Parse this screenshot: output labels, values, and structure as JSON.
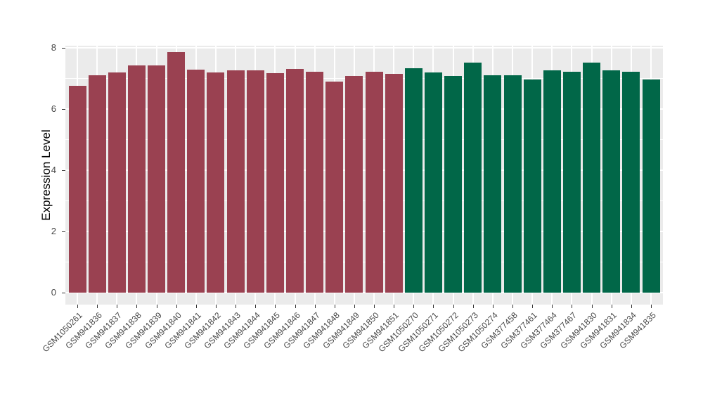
{
  "chart_data": {
    "type": "bar",
    "title": "",
    "xlabel": "",
    "ylabel": "Expression Level",
    "ylim": [
      0,
      8.3
    ],
    "yticks": [
      0,
      2,
      4,
      6,
      8
    ],
    "yticks_minor": [
      1,
      3,
      5,
      7
    ],
    "grid": true,
    "legend_position": "none",
    "x_label_angle_deg": 45,
    "categories": [
      "GSM1050261",
      "GSM941836",
      "GSM941837",
      "GSM941838",
      "GSM941839",
      "GSM941840",
      "GSM941841",
      "GSM941842",
      "GSM941843",
      "GSM941844",
      "GSM941845",
      "GSM941846",
      "GSM941847",
      "GSM941848",
      "GSM941849",
      "GSM941850",
      "GSM941851",
      "GSM1050270",
      "GSM1050271",
      "GSM1050272",
      "GSM1050273",
      "GSM1050274",
      "GSM377458",
      "GSM377461",
      "GSM377464",
      "GSM377467",
      "GSM941830",
      "GSM941831",
      "GSM941834",
      "GSM941835"
    ],
    "values": [
      6.77,
      7.1,
      7.19,
      7.42,
      7.42,
      7.86,
      7.29,
      7.19,
      7.26,
      7.26,
      7.17,
      7.32,
      7.21,
      6.9,
      7.07,
      7.23,
      7.16,
      7.34,
      7.2,
      7.09,
      7.51,
      7.1,
      7.1,
      6.96,
      7.26,
      7.21,
      7.52,
      7.26,
      7.22,
      6.96
    ],
    "bar_colors": [
      "#9A4151",
      "#9A4151",
      "#9A4151",
      "#9A4151",
      "#9A4151",
      "#9A4151",
      "#9A4151",
      "#9A4151",
      "#9A4151",
      "#9A4151",
      "#9A4151",
      "#9A4151",
      "#9A4151",
      "#9A4151",
      "#9A4151",
      "#9A4151",
      "#9A4151",
      "#016748",
      "#016748",
      "#016748",
      "#016748",
      "#016748",
      "#016748",
      "#016748",
      "#016748",
      "#016748",
      "#016748",
      "#016748",
      "#016748",
      "#016748"
    ],
    "group_colors": {
      "maroon_group": "#9A4151",
      "green_group": "#016748"
    },
    "panel_bg": "#EBEBEB",
    "grid_color": "#FFFFFF",
    "tick_mark_color": "#333333",
    "tick_text_color": "#474747",
    "axis_title_color": "#000000"
  }
}
